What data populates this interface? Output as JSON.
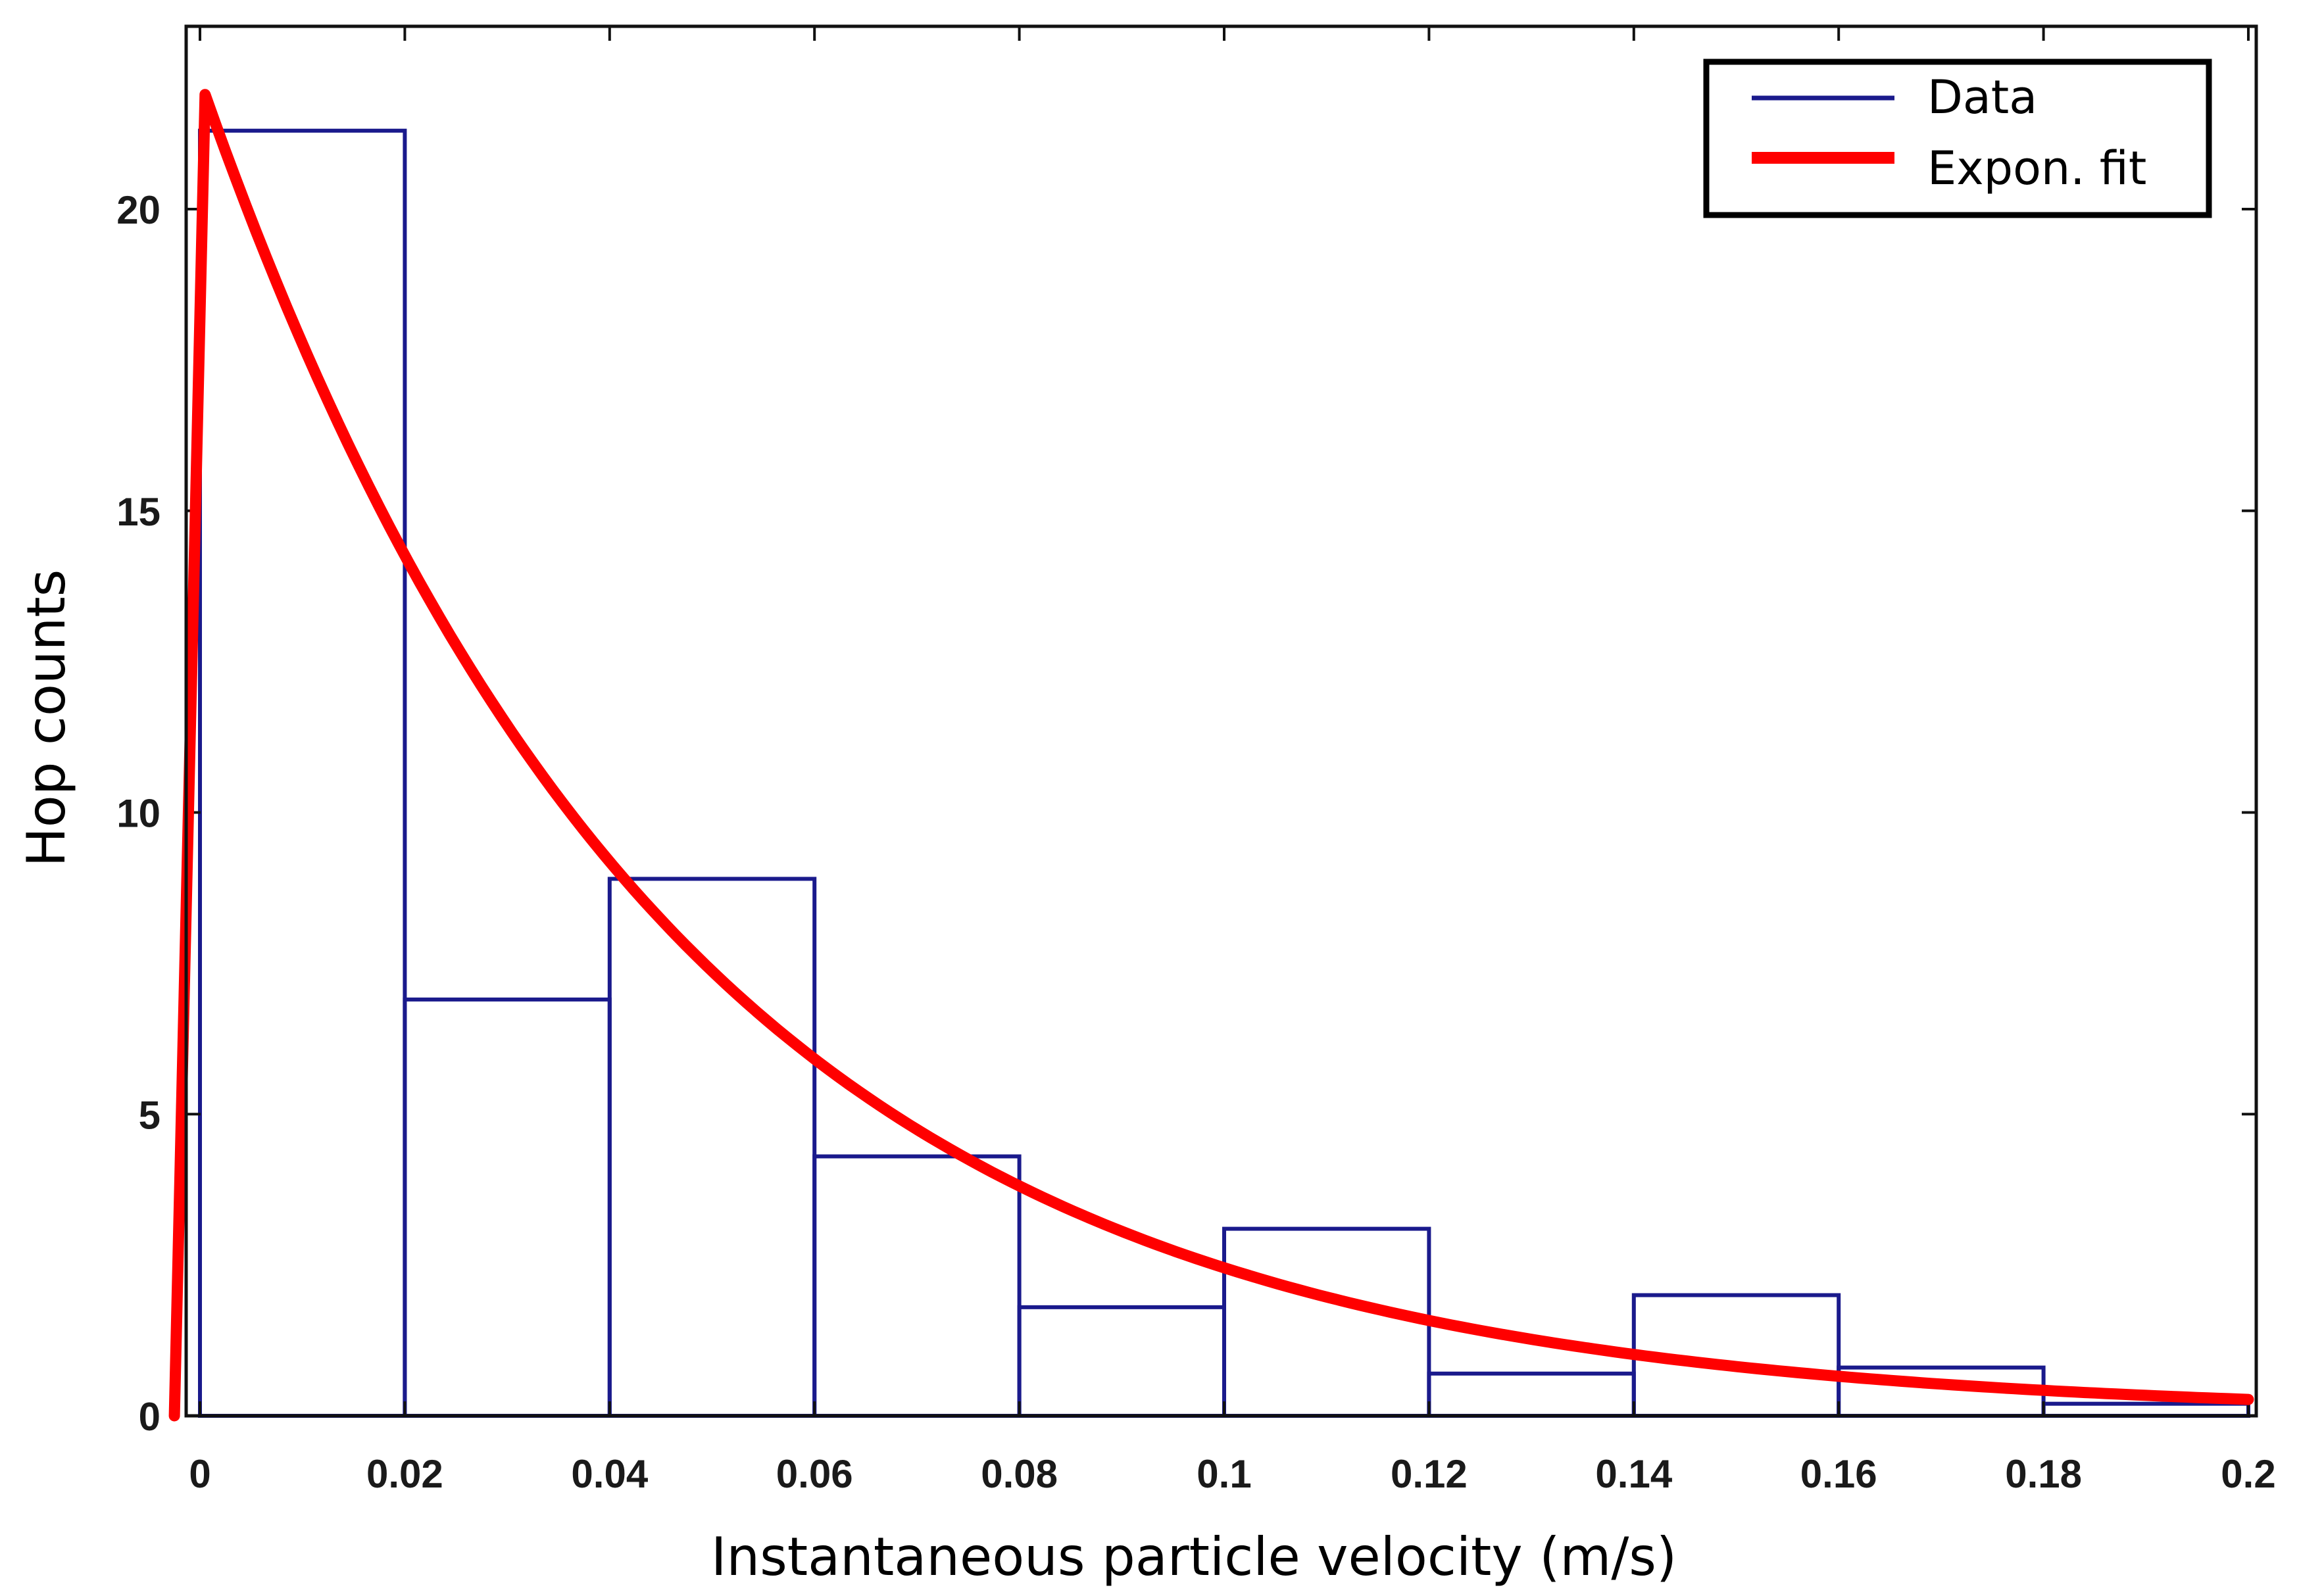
{
  "chart_data": {
    "type": "bar",
    "title": "",
    "xlabel": "Instantaneous particle velocity (m/s)",
    "ylabel": "Hop counts",
    "xlim": [
      -0.002,
      0.2
    ],
    "ylim": [
      0,
      23
    ],
    "grid": false,
    "x_ticks": [
      0,
      0.02,
      0.04,
      0.06,
      0.08,
      0.1,
      0.12,
      0.14,
      0.16,
      0.18,
      0.2
    ],
    "x_tick_labels": [
      "0",
      "0.02",
      "0.04",
      "0.06",
      "0.08",
      "0.1",
      "0.12",
      "0.14",
      "0.16",
      "0.18",
      "0.2"
    ],
    "y_ticks": [
      0,
      5,
      10,
      15,
      20
    ],
    "y_tick_labels": [
      "0",
      "5",
      "10",
      "15",
      "20"
    ],
    "bin_edges": [
      0,
      0.02,
      0.04,
      0.06,
      0.08,
      0.1,
      0.12,
      0.14,
      0.16,
      0.18,
      0.2
    ],
    "series": [
      {
        "name": "Data",
        "type": "histogram",
        "color": "#1a1a8c",
        "values": [
          21.3,
          6.9,
          8.9,
          4.3,
          1.8,
          3.1,
          0.7,
          2.0,
          0.8,
          0.2
        ]
      },
      {
        "name": "Expon. fit",
        "type": "line",
        "color": "#ff0000",
        "peak": {
          "x": 0.0005,
          "y": 21.9
        },
        "points": [
          [
            -0.0025,
            0
          ],
          [
            0.0005,
            21.9
          ],
          [
            0.02,
            14.1
          ],
          [
            0.04,
            9.0
          ],
          [
            0.06,
            5.9
          ],
          [
            0.08,
            3.8
          ],
          [
            0.1,
            2.5
          ],
          [
            0.12,
            1.6
          ],
          [
            0.14,
            1.05
          ],
          [
            0.16,
            0.68
          ],
          [
            0.18,
            0.45
          ],
          [
            0.2,
            0.28
          ]
        ],
        "decay_rate": 22
      }
    ],
    "legend": {
      "position": "top-right",
      "entries": [
        {
          "label": "Data",
          "color": "#1a1a8c"
        },
        {
          "label": "Expon. fit",
          "color": "#ff0000"
        }
      ]
    }
  }
}
